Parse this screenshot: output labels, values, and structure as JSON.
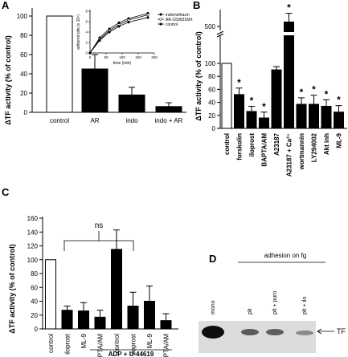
{
  "panels": {
    "A": {
      "letter": "A",
      "ylabel": "ΔTF activity (% of control)",
      "yticks": [
        "0",
        "20",
        "40",
        "60",
        "80",
        "100"
      ],
      "categories": [
        "control",
        "AR",
        "indo",
        "indo + AR"
      ],
      "inset": {
        "ylabel": "adhered plts (x 10⁵)",
        "xlabel": "time (min)",
        "xticks": [
          "0",
          "50",
          "100",
          "150",
          "200"
        ],
        "yticks": [
          "0",
          "2",
          "4",
          "6",
          "8"
        ],
        "legend": [
          "indomethacin",
          "AR-C69931MX",
          "control"
        ]
      }
    },
    "B": {
      "letter": "B",
      "ylabel": "ΔTF activity (% of control)",
      "yticks_low": [
        "0",
        "20",
        "40",
        "60",
        "80",
        "100"
      ],
      "yticks_high": [
        "500"
      ],
      "categories": [
        "control",
        "forskolin",
        "iloprost",
        "BAPTA/AM",
        "A23187",
        "A23187 + Ca²⁺",
        "wortmannin",
        "LY294002",
        "Akt inh",
        "ML-9"
      ],
      "star": "*"
    },
    "C": {
      "letter": "C",
      "ylabel": "ΔTF activity (% of control)",
      "yticks": [
        "0",
        "20",
        "40",
        "60",
        "80",
        "100",
        "120",
        "140",
        "160"
      ],
      "categories": [
        "control",
        "iloprost",
        "ML-9",
        "BAPTA/AM",
        "control",
        "iloprost",
        "ML-9",
        "BAPTA/AM"
      ],
      "ns": "ns",
      "group_label": "ADP + U-44619"
    },
    "D": {
      "letter": "D",
      "header": "adhesion on fg",
      "lanes": [
        "mono",
        "plt",
        "plt + puro",
        "plt + ilo"
      ],
      "band_label": "TF"
    }
  },
  "chart_data": [
    {
      "panel": "A",
      "type": "bar",
      "categories": [
        "control",
        "AR",
        "indo",
        "indo + AR"
      ],
      "values": [
        100,
        45,
        18,
        6
      ],
      "errors": [
        0,
        15,
        8,
        4
      ],
      "fills": [
        "#ffffff",
        "#000000",
        "#000000",
        "#000000"
      ],
      "ylabel": "ΔTF activity (% of control)",
      "ylim": [
        0,
        100
      ]
    },
    {
      "panel": "A-inset",
      "type": "line",
      "x": [
        0,
        30,
        60,
        90,
        120,
        180
      ],
      "series": [
        {
          "name": "indomethacin",
          "values": [
            0,
            2.9,
            4.6,
            5.8,
            6.6,
            7.6
          ]
        },
        {
          "name": "AR-C69931MX",
          "values": [
            0,
            2.6,
            4.3,
            5.4,
            6.3,
            7.3
          ]
        },
        {
          "name": "control",
          "values": [
            0,
            2.4,
            4.0,
            5.1,
            5.9,
            6.8
          ]
        }
      ],
      "xlabel": "time (min)",
      "ylabel": "adhered plts (x 10⁵)",
      "xlim": [
        0,
        200
      ],
      "ylim": [
        0,
        8
      ]
    },
    {
      "panel": "B",
      "type": "bar",
      "categories": [
        "control",
        "forskolin",
        "iloprost",
        "BAPTA/AM",
        "A23187",
        "A23187 + Ca²⁺",
        "wortmannin",
        "LY294002",
        "Akt inh",
        "ML-9"
      ],
      "values": [
        100,
        52,
        26,
        16,
        90,
        510,
        37,
        37,
        34,
        25
      ],
      "errors": [
        0,
        10,
        8,
        9,
        5,
        20,
        10,
        14,
        10,
        10
      ],
      "fills": [
        "#ffffff",
        "#000000",
        "#000000",
        "#000000",
        "#000000",
        "#000000",
        "#000000",
        "#000000",
        "#000000",
        "#000000"
      ],
      "significant": [
        false,
        true,
        true,
        true,
        false,
        true,
        true,
        true,
        true,
        true
      ],
      "ylabel": "ΔTF activity (% of control)",
      "ylim": [
        0,
        520
      ],
      "axis_break": [
        110,
        450
      ]
    },
    {
      "panel": "C",
      "type": "bar",
      "categories": [
        "control",
        "iloprost",
        "ML-9",
        "BAPTA/AM",
        "control",
        "iloprost",
        "ML-9",
        "BAPTA/AM"
      ],
      "values": [
        100,
        27,
        26,
        17,
        115,
        33,
        40,
        12
      ],
      "errors": [
        0,
        6,
        12,
        10,
        28,
        20,
        22,
        10
      ],
      "fills": [
        "#ffffff",
        "#000000",
        "#000000",
        "#000000",
        "#000000",
        "#000000",
        "#000000",
        "#000000"
      ],
      "ylabel": "ΔTF activity (% of control)",
      "ylim": [
        0,
        160
      ]
    }
  ]
}
